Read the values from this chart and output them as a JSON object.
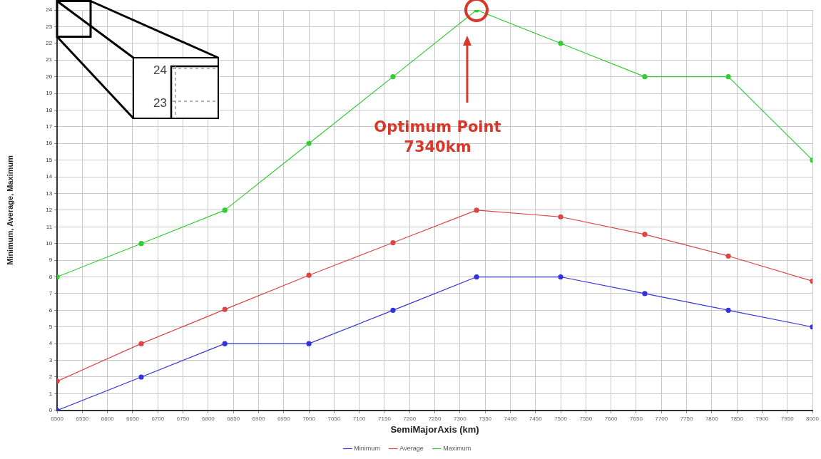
{
  "chart_data": {
    "type": "line",
    "xlabel": "SemiMajorAxis (km)",
    "ylabel": "Minimum, Average, Maximum",
    "x": [
      6500,
      6667,
      6833,
      7000,
      7167,
      7333,
      7500,
      7667,
      7833,
      8000
    ],
    "series": [
      {
        "name": "Minimum",
        "color": "#3333dd",
        "values": [
          0,
          2,
          4,
          4,
          6,
          8,
          8,
          7,
          6,
          5
        ]
      },
      {
        "name": "Average",
        "color": "#dd4444",
        "values": [
          1.75,
          4,
          6.05,
          8.1,
          10.05,
          12,
          11.6,
          10.55,
          9.25,
          7.75
        ]
      },
      {
        "name": "Maximum",
        "color": "#33cc33",
        "values": [
          8,
          10,
          12,
          16,
          20,
          24,
          22,
          20,
          20,
          15
        ]
      }
    ],
    "xlim": [
      6500,
      8000
    ],
    "xticks": [
      6500,
      6550,
      6600,
      6650,
      6700,
      6750,
      6800,
      6850,
      6900,
      6950,
      7000,
      7050,
      7100,
      7150,
      7200,
      7250,
      7300,
      7350,
      7400,
      7450,
      7500,
      7550,
      7600,
      7650,
      7700,
      7750,
      7800,
      7850,
      7900,
      7950,
      8000
    ],
    "ylim": [
      0,
      24
    ],
    "yticks": [
      0,
      1,
      2,
      3,
      4,
      5,
      6,
      7,
      8,
      9,
      10,
      11,
      12,
      13,
      14,
      15,
      16,
      17,
      18,
      19,
      20,
      21,
      22,
      23,
      24
    ],
    "grid": true,
    "legend": "bottom",
    "marker": "circle",
    "line_style": "solid",
    "annotations": [
      "Optimum Point\n7340km",
      "24",
      "23"
    ]
  }
}
